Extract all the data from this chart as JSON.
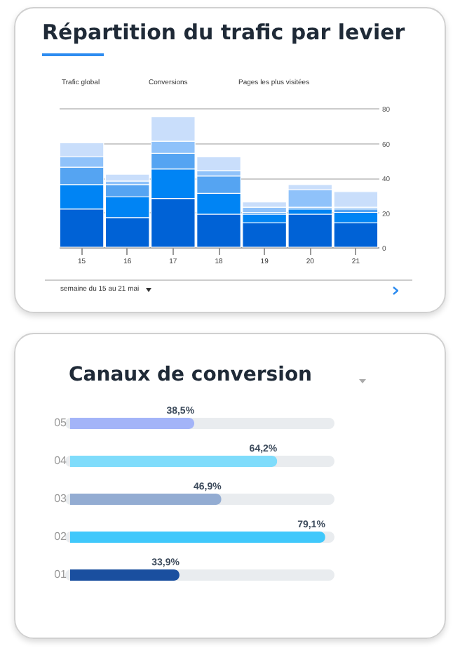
{
  "chart_data": [
    {
      "type": "bar",
      "title": "Répartition du trafic par levier",
      "annotations": [
        "Trafic global",
        "Conversions",
        "Pages les plus visitées",
        "semaine du 15 au 21 mai"
      ],
      "categories": [
        "15",
        "16",
        "17",
        "18",
        "19",
        "20",
        "21"
      ],
      "stacked": true,
      "series": [
        {
          "color": "#0062d6",
          "values": [
            22,
            17,
            28,
            19,
            14,
            19,
            14
          ]
        },
        {
          "color": "#0084f4",
          "values": [
            14,
            12,
            17,
            12,
            5,
            3,
            6
          ]
        },
        {
          "color": "#55a4f2",
          "values": [
            10,
            7,
            9,
            10,
            1,
            1,
            2
          ]
        },
        {
          "color": "#8fc2fa",
          "values": [
            6,
            2,
            7,
            3,
            3,
            10,
            1
          ]
        },
        {
          "color": "#c9defb",
          "values": [
            8,
            4,
            14,
            8,
            3,
            3,
            9
          ]
        }
      ],
      "ylim": [
        0,
        80
      ],
      "yticks": [
        0,
        20,
        40,
        60,
        80
      ],
      "grid": "y",
      "legend": false
    },
    {
      "type": "bar",
      "orientation": "horizontal",
      "title": "Canaux de conversion",
      "categories": [
        "05",
        "04",
        "03",
        "02",
        "01"
      ],
      "values": [
        38.5,
        64.2,
        46.9,
        79.1,
        33.9
      ],
      "value_labels": [
        "38,5%",
        "64,2%",
        "46,9%",
        "79,1%",
        "33,9%"
      ],
      "colors": [
        "#a3b4f8",
        "#7fdcfb",
        "#93acd2",
        "#40c8fb",
        "#1a4f9f"
      ],
      "tick_labels": "y",
      "grid": "y"
    }
  ]
}
